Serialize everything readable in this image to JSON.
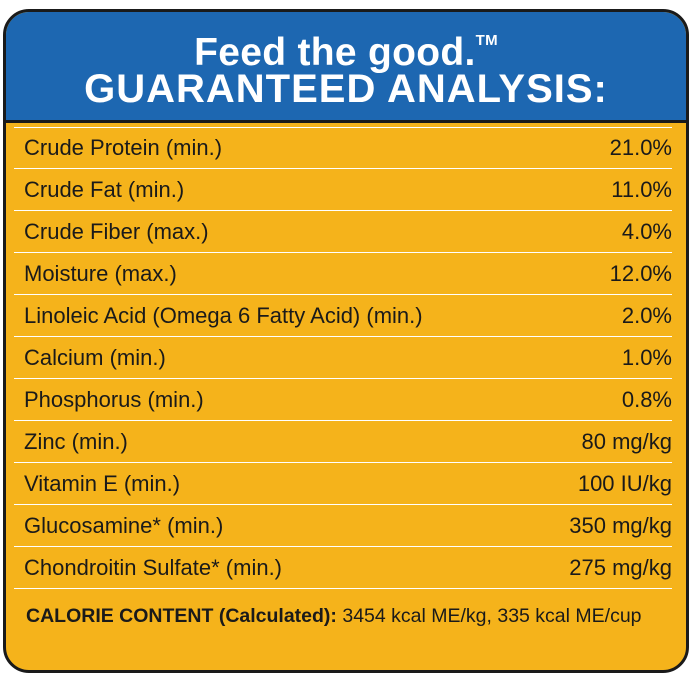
{
  "header": {
    "line1": "Feed the good.",
    "tm": "TM",
    "line2": "GUARANTEED ANALYSIS:"
  },
  "rows": [
    {
      "label": "Crude Protein (min.)",
      "value": "21.0%"
    },
    {
      "label": "Crude Fat (min.)",
      "value": "11.0%"
    },
    {
      "label": "Crude Fiber (max.)",
      "value": "4.0%"
    },
    {
      "label": "Moisture (max.)",
      "value": "12.0%"
    },
    {
      "label": "Linoleic Acid (Omega 6 Fatty Acid) (min.)",
      "value": "2.0%"
    },
    {
      "label": "Calcium (min.)",
      "value": "1.0%"
    },
    {
      "label": "Phosphorus (min.)",
      "value": "0.8%"
    },
    {
      "label": "Zinc (min.)",
      "value": "80 mg/kg"
    },
    {
      "label": "Vitamin E (min.)",
      "value": "100 IU/kg"
    },
    {
      "label": "Glucosamine* (min.)",
      "value": "350 mg/kg"
    },
    {
      "label": "Chondroitin Sulfate* (min.)",
      "value": "275 mg/kg"
    }
  ],
  "calorie": {
    "label": "CALORIE CONTENT (Calculated):",
    "value": "3454 kcal ME/kg, 335 kcal ME/cup"
  },
  "colors": {
    "header_blue": "#1d67b1",
    "panel_yellow": "#f5b31b",
    "border": "#1a1a1a"
  }
}
